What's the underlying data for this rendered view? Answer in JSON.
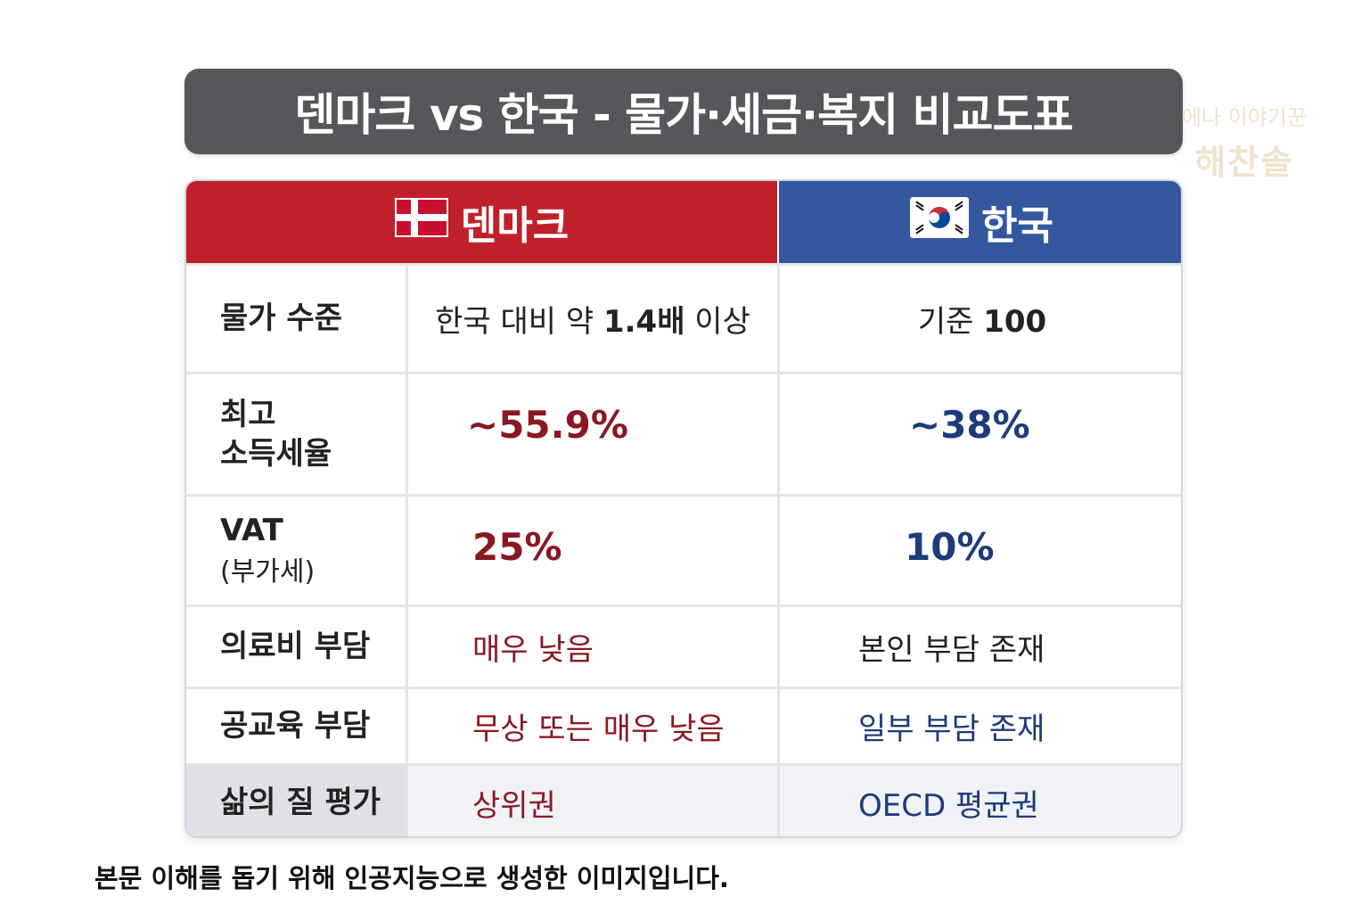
{
  "title": "덴마크 vs 한국 - 물가·세금·복지 비교도표",
  "watermark": {
    "line1": "에나 이야기꾼",
    "line2": "해찬솔"
  },
  "header": {
    "denmark": "덴마크",
    "korea": "한국"
  },
  "rows": [
    {
      "label": "물가 수준",
      "denmark": {
        "prefix": "한국 대비 약 ",
        "emph": "1.4배",
        "suffix": " 이상"
      },
      "korea": {
        "prefix": "기준 ",
        "emph": "100"
      }
    },
    {
      "label_line1": "최고",
      "label_line2": "소득세율",
      "denmark": "~55.9%",
      "korea": "~38%"
    },
    {
      "label_line1": "VAT",
      "label_line2": "(부가세)",
      "denmark": "25%",
      "korea": "10%"
    },
    {
      "label": "의료비 부담",
      "denmark": "매우 낮음",
      "korea": "본인 부담 존재"
    },
    {
      "label": "공교육 부담",
      "denmark": "무상 또는 매우 낮음",
      "korea": "일부 부담 존재"
    },
    {
      "label": "삶의 질 평가",
      "denmark": "상위권",
      "korea": "OECD 평균권"
    }
  ],
  "caption": "본문 이해를 돕기 위해 인공지능으로 생성한 이미지입니다.",
  "colors": {
    "denmark": "#c0202a",
    "korea": "#33589e",
    "title_bg": "#55575b"
  },
  "icons": {
    "denmark": "denmark-flag-icon",
    "korea": "korea-flag-icon"
  }
}
